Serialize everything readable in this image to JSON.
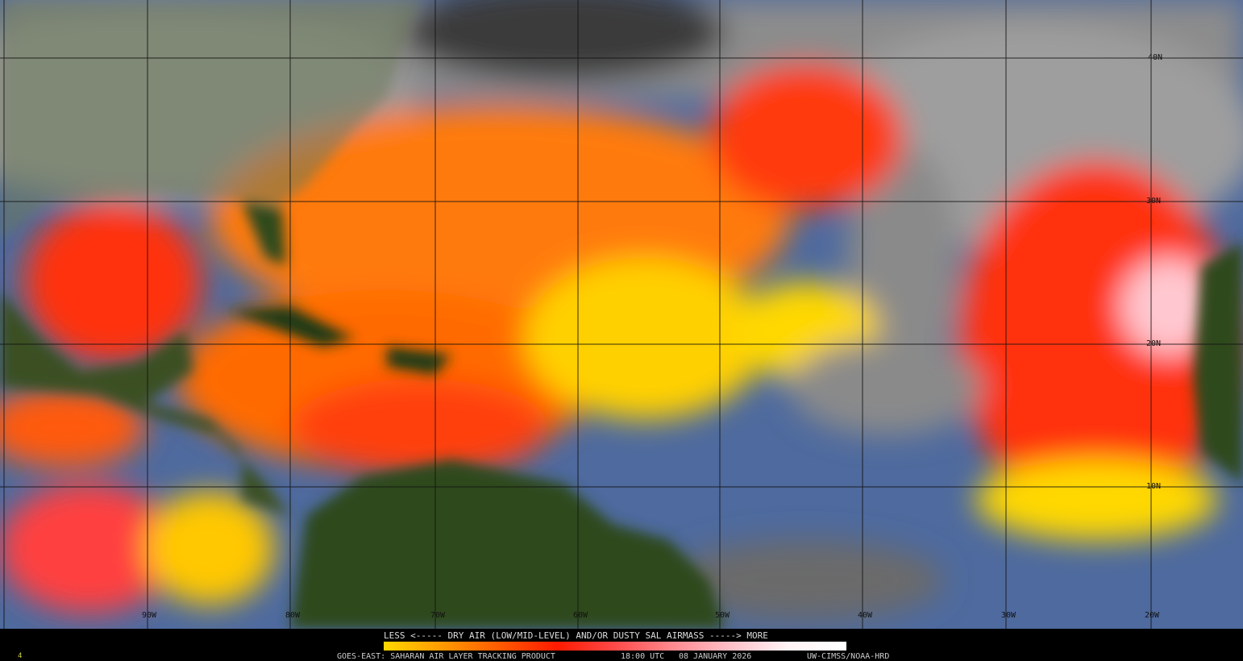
{
  "legend": {
    "title": "LESS <----- DRY AIR (LOW/MID-LEVEL) AND/OR DUSTY SAL AIRMASS -----> MORE",
    "gradient_colors": [
      "#ffd800",
      "#ff9a00",
      "#ff1a00",
      "#ff8a90",
      "#ffffff"
    ]
  },
  "footer": {
    "product": "GOES-EAST: SAHARAN AIR LAYER TRACKING PRODUCT",
    "time": "18:00 UTC",
    "date": "08 JANUARY 2026",
    "credit": "UW-CIMSS/NOAA-HRD",
    "frame_marker": "4"
  },
  "grid": {
    "longitude_labels": [
      "90W",
      "80W",
      "70W",
      "60W",
      "50W",
      "40W",
      "30W",
      "20W"
    ],
    "latitude_labels": [
      "40N",
      "30N",
      "20N",
      "10N"
    ]
  },
  "colors": {
    "land": "#2f4a1c",
    "ocean_moist": "#4a6aa8",
    "cloud": "#9a9a9a",
    "dry_air": "#ff4a10",
    "dust": "#ffffff"
  }
}
